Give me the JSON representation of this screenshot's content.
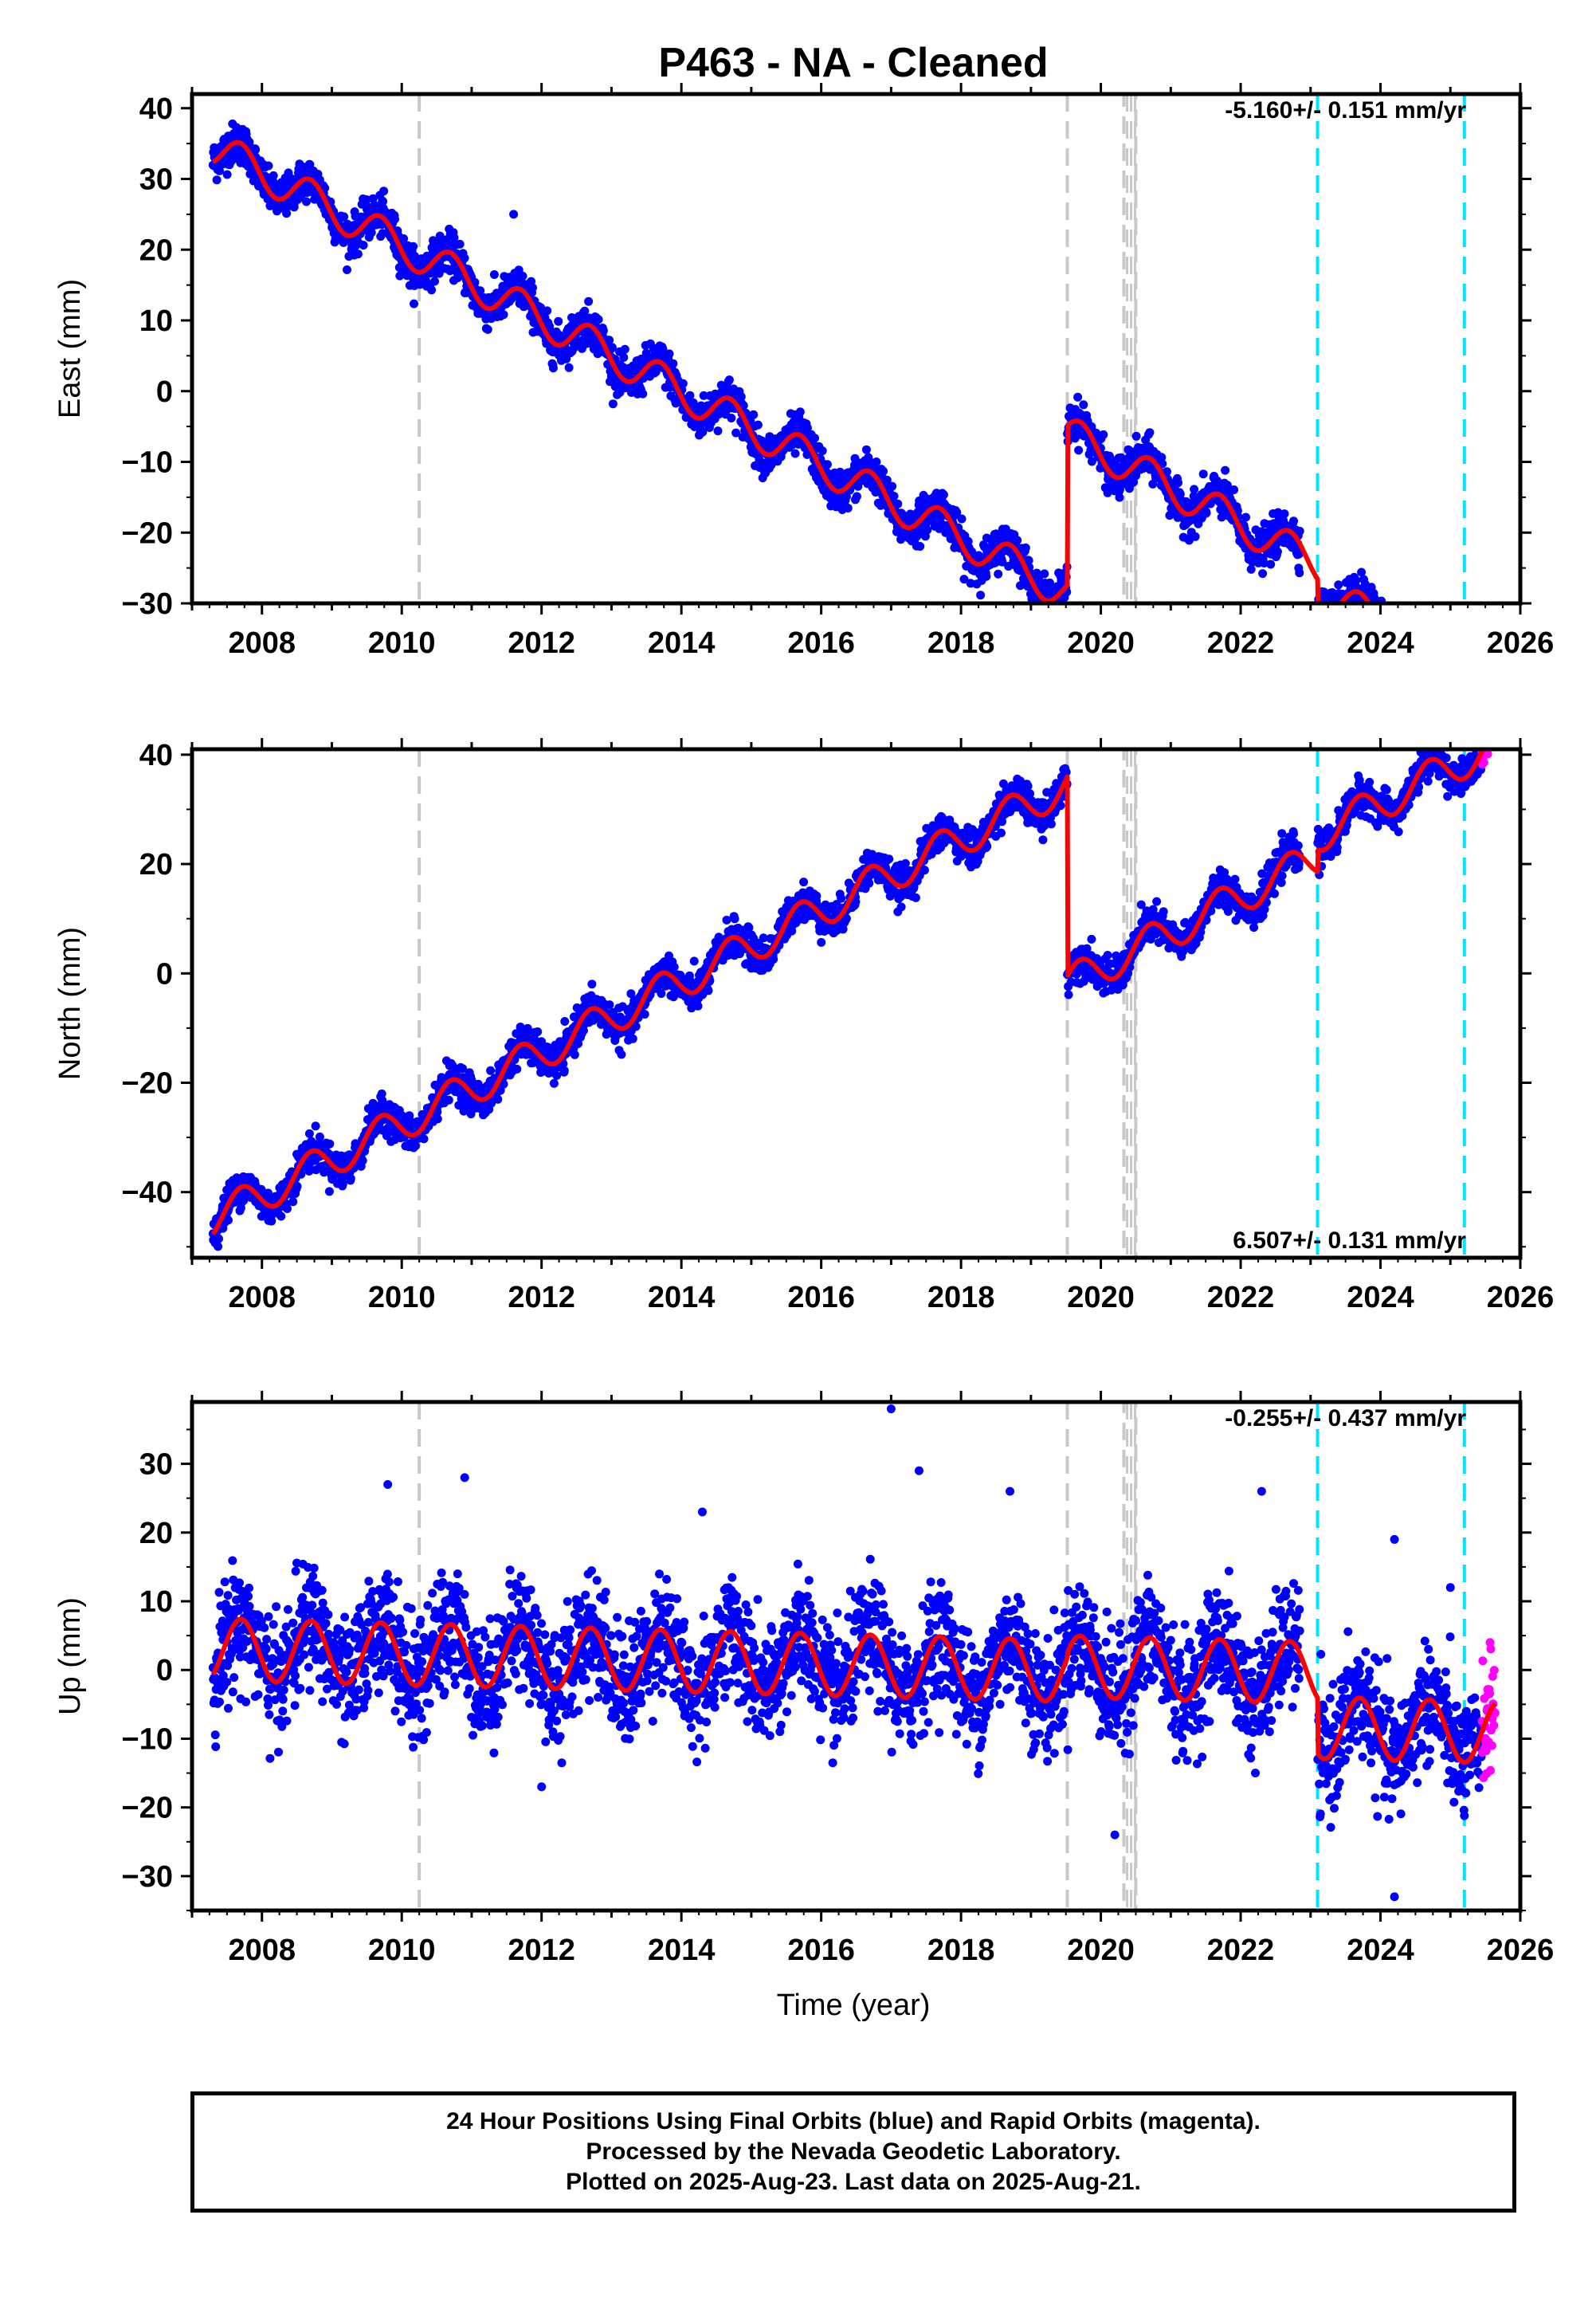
{
  "title": "P463  - NA - Cleaned",
  "xlabel": "Time (year)",
  "colors": {
    "final_orbits": "#0000ff",
    "rapid_orbits": "#ff00ff",
    "model": "#ff0000",
    "equipment_change": "#c8c8c8",
    "earthquake": "#00e5ff",
    "frame": "#000000"
  },
  "footer": {
    "line1": "24 Hour Positions Using Final Orbits (blue) and Rapid Orbits (magenta).",
    "line2": "Processed by the Nevada Geodetic Laboratory.",
    "line3": "Plotted on 2025-Aug-23. Last data on 2025-Aug-21."
  },
  "chart_data": [
    {
      "type": "scatter",
      "component": "East",
      "ylabel": "East (mm)",
      "rate_label": "-5.160+/- 0.151 mm/yr",
      "rate_position": "top-right",
      "xlim": [
        2007.0,
        2026.0
      ],
      "ylim": [
        -30,
        42
      ],
      "xticks": [
        2008,
        2010,
        2012,
        2014,
        2016,
        2018,
        2020,
        2022,
        2024,
        2026
      ],
      "yticks": [
        -30,
        -20,
        -10,
        0,
        10,
        20,
        30,
        40
      ],
      "data_start": 2007.3,
      "data_end": 2025.64,
      "rapid_start": 2025.45,
      "offset_epoch": 2019.52,
      "model": {
        "before": {
          "at_start": 34.5,
          "rate": -5.16
        },
        "after": {
          "at_offset": -6.0,
          "rate": -5.16
        },
        "seasonal_amplitude": 2.6
      },
      "noise_sd": 1.4,
      "eq_steps": [
        {
          "year": 2023.1,
          "step": -3.5
        }
      ],
      "outliers": [
        {
          "x": 2011.6,
          "y": 25
        }
      ]
    },
    {
      "type": "scatter",
      "component": "North",
      "ylabel": "North (mm)",
      "rate_label": "6.507+/- 0.131 mm/yr",
      "rate_position": "bottom-right",
      "xlim": [
        2007.0,
        2026.0
      ],
      "ylim": [
        -52,
        41
      ],
      "xticks": [
        2008,
        2010,
        2012,
        2014,
        2016,
        2018,
        2020,
        2022,
        2024,
        2026
      ],
      "yticks": [
        -40,
        -20,
        0,
        20,
        40
      ],
      "data_start": 2007.3,
      "data_end": 2025.64,
      "rapid_start": 2025.45,
      "offset_epoch": 2019.52,
      "model": {
        "before": {
          "at_start": -45.0,
          "rate": 6.507
        },
        "after": {
          "at_offset": -2.0,
          "rate": 6.507
        },
        "seasonal_amplitude": 3.3
      },
      "noise_sd": 1.6,
      "eq_steps": [
        {
          "year": 2023.1,
          "step": 4.0
        }
      ],
      "outliers": []
    },
    {
      "type": "scatter",
      "component": "Up",
      "ylabel": "Up (mm)",
      "rate_label": "-0.255+/- 0.437 mm/yr",
      "rate_position": "top-right",
      "xlim": [
        2007.0,
        2026.0
      ],
      "ylim": [
        -35,
        39
      ],
      "xticks": [
        2008,
        2010,
        2012,
        2014,
        2016,
        2018,
        2020,
        2022,
        2024,
        2026
      ],
      "yticks": [
        -30,
        -20,
        -10,
        0,
        10,
        20,
        30
      ],
      "data_start": 2007.3,
      "data_end": 2025.64,
      "rapid_start": 2025.45,
      "offset_epoch": 2019.52,
      "model": {
        "before": {
          "at_start": 3.0,
          "rate": -0.255
        },
        "after": {
          "at_offset": 0.5,
          "rate": -0.255
        },
        "seasonal_amplitude": 4.5
      },
      "noise_sd": 4.2,
      "eq_steps": [
        {
          "year": 2023.1,
          "step": -8.0
        }
      ],
      "outliers": [
        {
          "x": 2017.0,
          "y": 38
        },
        {
          "x": 2017.4,
          "y": 29
        },
        {
          "x": 2010.9,
          "y": 28
        },
        {
          "x": 2009.8,
          "y": 27
        },
        {
          "x": 2022.3,
          "y": 26
        },
        {
          "x": 2018.7,
          "y": 26
        },
        {
          "x": 2014.3,
          "y": 23
        },
        {
          "x": 2012.0,
          "y": -17
        },
        {
          "x": 2020.2,
          "y": -24
        },
        {
          "x": 2024.2,
          "y": -33
        },
        {
          "x": 2024.2,
          "y": 19
        },
        {
          "x": 2025.0,
          "y": 12
        }
      ]
    }
  ],
  "vertical_markers": {
    "equipment_changes": [
      2010.25,
      2019.52
    ],
    "equipment_band": [
      2020.33,
      2020.5
    ],
    "earthquakes": [
      2023.1,
      2025.2
    ]
  }
}
